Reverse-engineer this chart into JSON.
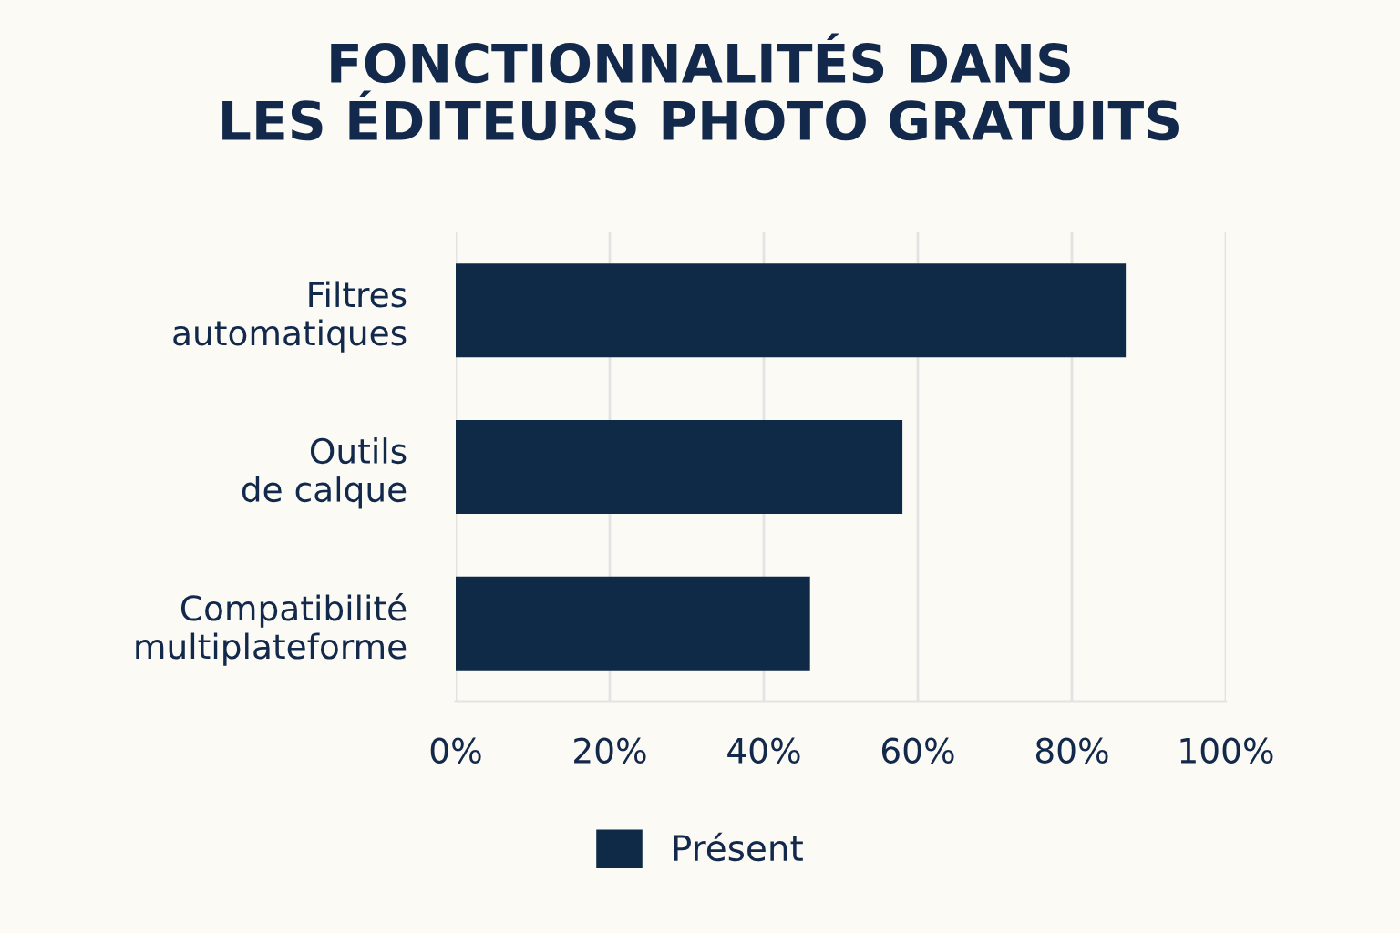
{
  "chart_data": {
    "type": "bar",
    "orientation": "horizontal",
    "title": "FONCTIONNALITÉS DANS\nLES ÉDITEURS PHOTO GRATUITS",
    "categories": [
      "Filtres\nautomatiques",
      "Outils\nde calque",
      "Compatibilité\nmultiplateforme"
    ],
    "series": [
      {
        "name": "Présent",
        "color": "#0f2a47",
        "values": [
          87,
          58,
          46
        ]
      }
    ],
    "xlim": [
      0,
      100
    ],
    "xticks": [
      {
        "value": 0,
        "label": "0%"
      },
      {
        "value": 20,
        "label": "20%"
      },
      {
        "value": 40,
        "label": "40%"
      },
      {
        "value": 60,
        "label": "60%"
      },
      {
        "value": 80,
        "label": "80%"
      },
      {
        "value": 100,
        "label": "100%"
      }
    ],
    "grid": "x",
    "legend": "bottom"
  }
}
